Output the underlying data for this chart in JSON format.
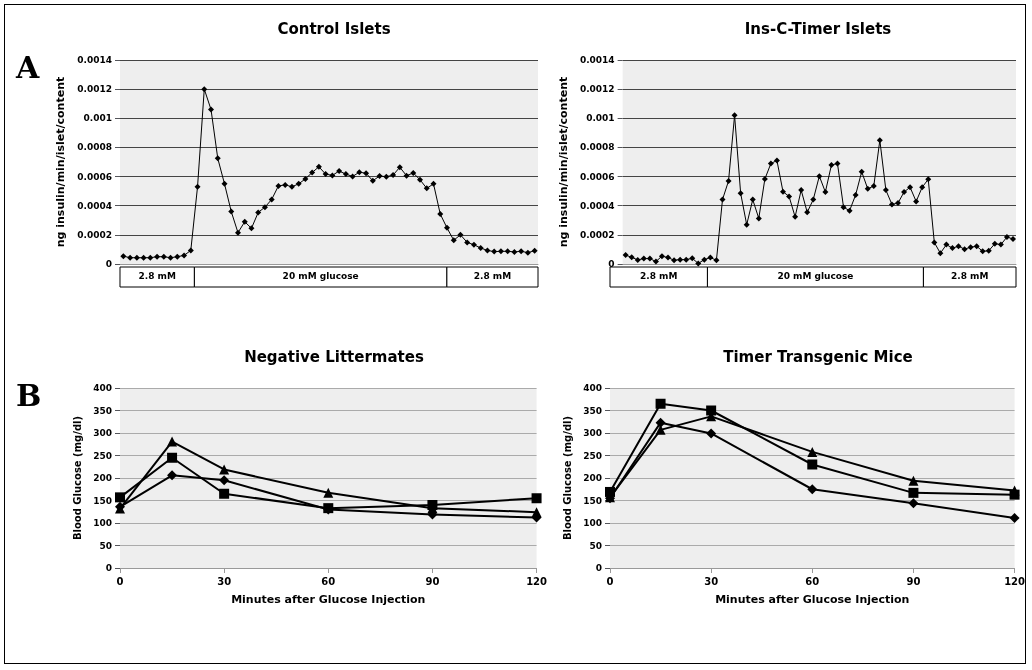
{
  "chart_data": [
    {
      "type": "line",
      "title": "Control Islets",
      "ylabel": "ng insulin/min/islet/content",
      "annotations": [
        "A",
        "2.8 mM",
        "20 mM glucose",
        "2.8 mM"
      ],
      "categories": [
        null,
        null,
        null,
        null,
        null,
        null,
        null,
        null,
        null,
        null,
        null,
        null,
        null,
        null,
        null,
        null,
        null,
        null,
        null,
        null,
        null,
        null,
        null,
        null,
        null,
        null,
        null,
        null,
        null,
        null,
        null,
        null,
        null,
        null,
        null,
        null,
        null,
        null,
        null,
        null,
        null,
        null,
        null,
        null,
        null,
        null,
        null,
        null,
        null,
        null,
        null,
        null,
        null,
        null,
        null,
        null,
        null,
        null,
        null,
        null,
        null,
        null
      ],
      "series": [
        {
          "color": "#000000",
          "marker": "diamond",
          "values": [
            5.4e-05,
            4.3e-05,
            4.3e-05,
            4.3e-05,
            4.3e-05,
            5e-05,
            5e-05,
            4.3e-05,
            5e-05,
            5.9e-05,
            9.3e-05,
            0.00053,
            0.0012,
            0.00106,
            0.000725,
            0.00055,
            0.00036,
            0.000215,
            0.00029,
            0.000245,
            0.000354,
            0.00039,
            0.000443,
            0.000536,
            0.000543,
            0.00053,
            0.00055,
            0.000584,
            0.000628,
            0.000667,
            0.000617,
            0.000608,
            0.000638,
            0.000617,
            0.000601,
            0.00063,
            0.000623,
            0.000571,
            0.000604,
            0.000599,
            0.00061,
            0.000664,
            0.000606,
            0.000625,
            0.000578,
            0.000519,
            0.00055,
            0.000343,
            0.000248,
            0.000163,
            0.0002,
            0.000148,
            0.000132,
            0.00011,
            9.3e-05,
            8.5e-05,
            8.7e-05,
            8.7e-05,
            8.3e-05,
            8.7e-05,
            7.8e-05,
            9.1e-05
          ]
        }
      ],
      "ylim": [
        0,
        0.0014
      ],
      "yticks": [
        0,
        0.0002,
        0.0004,
        0.0006,
        0.0008,
        0.001,
        0.0012,
        0.0014
      ],
      "grid": "y",
      "tick_labels": "y"
    },
    {
      "type": "line",
      "title": "Ins-C-Timer Islets",
      "ylabel": "ng insulin/min/islet/content",
      "annotations": [
        "2.8 mM",
        "20 mM glucose",
        "2.8 mM"
      ],
      "categories": [
        null,
        null,
        null,
        null,
        null,
        null,
        null,
        null,
        null,
        null,
        null,
        null,
        null,
        null,
        null,
        null,
        null,
        null,
        null,
        null,
        null,
        null,
        null,
        null,
        null,
        null,
        null,
        null,
        null,
        null,
        null,
        null,
        null,
        null,
        null,
        null,
        null,
        null,
        null,
        null,
        null,
        null,
        null,
        null,
        null,
        null,
        null,
        null,
        null,
        null,
        null,
        null,
        null,
        null,
        null,
        null,
        null,
        null,
        null,
        null,
        null,
        null,
        null,
        null,
        null
      ],
      "series": [
        {
          "color": "#000000",
          "marker": "diamond",
          "values": [
            6.1e-05,
            4.6e-05,
            2.8e-05,
            3.7e-05,
            3.7e-05,
            1.7e-05,
            5.4e-05,
            4.4e-05,
            2.6e-05,
            3e-05,
            3e-05,
            3.9e-05,
            4e-06,
            3e-05,
            4.4e-05,
            2.6e-05,
            0.000442,
            0.00057,
            0.00102,
            0.000485,
            0.00027,
            0.000442,
            0.000313,
            0.000583,
            0.00069,
            0.00071,
            0.000496,
            0.000464,
            0.000324,
            0.000507,
            0.000355,
            0.000442,
            0.000603,
            0.000494,
            0.000679,
            0.00069,
            0.00039,
            0.000366,
            0.000474,
            0.000633,
            0.000516,
            0.000535,
            0.000849,
            0.000507,
            0.000409,
            0.000418,
            0.000494,
            0.000527,
            0.000429,
            0.000527,
            0.000581,
            0.000148,
            7.4e-05,
            0.000133,
            0.000109,
            0.000122,
            0.000102,
            0.000115,
            0.000122,
            8.7e-05,
            9.1e-05,
            0.000139,
            0.000133,
            0.000185,
            0.000172
          ]
        }
      ],
      "ylim": [
        0,
        0.0014
      ],
      "yticks": [
        0,
        0.0002,
        0.0004,
        0.0006,
        0.0008,
        0.001,
        0.0012,
        0.0014
      ],
      "grid": "y",
      "tick_labels": "y"
    },
    {
      "type": "line",
      "title": "Negative Littermates",
      "xlabel": "Minutes after Glucose Injection",
      "ylabel": "Blood Glucose (mg/dl)",
      "annotations": [
        "B"
      ],
      "x": [
        0,
        15,
        30,
        60,
        90,
        120
      ],
      "series": [
        {
          "color": "#000000",
          "marker": "diamond",
          "values": [
            136,
            206,
            195,
            130,
            119,
            112
          ]
        },
        {
          "color": "#000000",
          "marker": "square",
          "values": [
            157,
            245,
            165,
            133,
            140,
            155
          ]
        },
        {
          "color": "#000000",
          "marker": "triangle",
          "values": [
            132,
            281,
            219,
            167,
            133,
            124
          ]
        }
      ],
      "xlim": [
        0,
        120
      ],
      "xticks": [
        0,
        30,
        60,
        90,
        120
      ],
      "ylim": [
        0,
        400
      ],
      "yticks": [
        0,
        50,
        100,
        150,
        200,
        250,
        300,
        350,
        400
      ],
      "grid": "y"
    },
    {
      "type": "line",
      "title": "Timer Transgenic Mice",
      "xlabel": "Minutes after Glucose Injection",
      "ylabel": "Blood Glucose (mg/dl)",
      "x": [
        0,
        15,
        30,
        60,
        90,
        120
      ],
      "series": [
        {
          "color": "#000000",
          "marker": "diamond",
          "values": [
            155,
            323,
            299,
            175,
            144,
            111
          ]
        },
        {
          "color": "#000000",
          "marker": "square",
          "values": [
            169,
            365,
            350,
            230,
            167,
            163
          ]
        },
        {
          "color": "#000000",
          "marker": "triangle",
          "values": [
            157,
            307,
            337,
            258,
            194,
            172
          ]
        }
      ],
      "xlim": [
        0,
        120
      ],
      "xticks": [
        0,
        30,
        60,
        90,
        120
      ],
      "ylim": [
        0,
        400
      ],
      "yticks": [
        0,
        50,
        100,
        150,
        200,
        250,
        300,
        350,
        400
      ],
      "grid": "y"
    }
  ]
}
